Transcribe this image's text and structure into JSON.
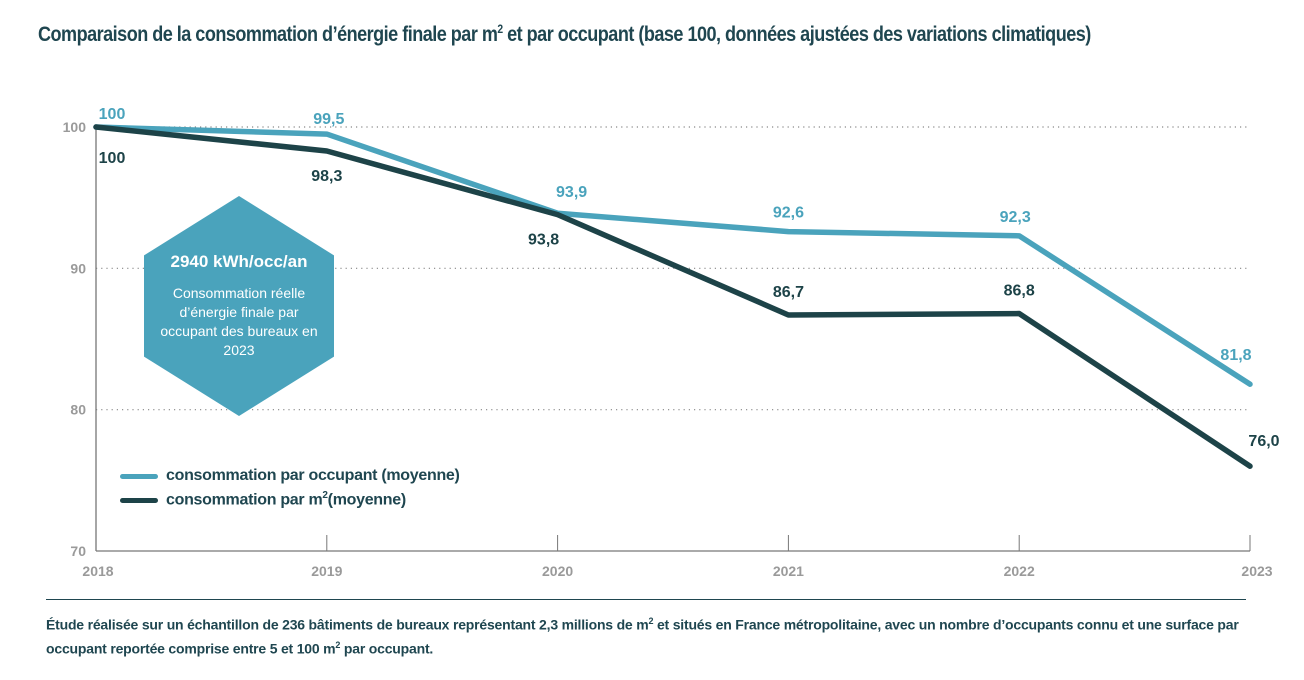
{
  "title": {
    "part1": "Comparaison de la consommation d’énergie finale par m",
    "sup": "2",
    "part2": " et par occupant (base 100, données ajustées des variations climatiques)"
  },
  "highlight": {
    "value": "2940 kWh/occ/an",
    "description": "Consommation réelle d’énergie finale par occupant des bureaux en 2023"
  },
  "legend": {
    "occupant": "consommation par occupant (moyenne)",
    "m2_part1": "consommation par m",
    "m2_sup": "2",
    "m2_part2": "(moyenne)"
  },
  "footnote": {
    "part1": "Étude réalisée sur un échantillon de 236 bâtiments de bureaux représentant 2,3 millions de m",
    "sup1": "2",
    "part2": " et situés en France métropolitaine, avec un nombre d’occupants connu et une surface par occupant reportée comprise entre 5 et 100 m",
    "sup2": "2",
    "part3": " par occupant."
  },
  "colors": {
    "occupant": "#4aa3bc",
    "m2": "#1d4348",
    "axis": "#777777",
    "grid": "#888888",
    "tick_text": "#9a9a9a",
    "title": "#1f4650"
  },
  "chart_data": {
    "type": "line",
    "title": "Comparaison de la consommation d’énergie finale par m² et par occupant (base 100, données ajustées des variations climatiques)",
    "xlabel": "",
    "ylabel": "",
    "categories": [
      "2018",
      "2019",
      "2020",
      "2021",
      "2022",
      "2023"
    ],
    "ylim": [
      70,
      100
    ],
    "yticks": [
      70,
      80,
      90,
      100
    ],
    "grid": "horizontal-dotted",
    "legend_position": "bottom-left",
    "series": [
      {
        "name": "consommation par occupant (moyenne)",
        "values": [
          100,
          99.5,
          93.9,
          92.6,
          92.3,
          81.8
        ],
        "labels": [
          "100",
          "99,5",
          "93,9",
          "92,6",
          "92,3",
          "81,8"
        ]
      },
      {
        "name": "consommation par m² (moyenne)",
        "values": [
          100,
          98.3,
          93.8,
          86.7,
          86.8,
          76.0
        ],
        "labels": [
          "100",
          "98,3",
          "93,8",
          "86,7",
          "86,8",
          "76,0"
        ]
      }
    ]
  }
}
